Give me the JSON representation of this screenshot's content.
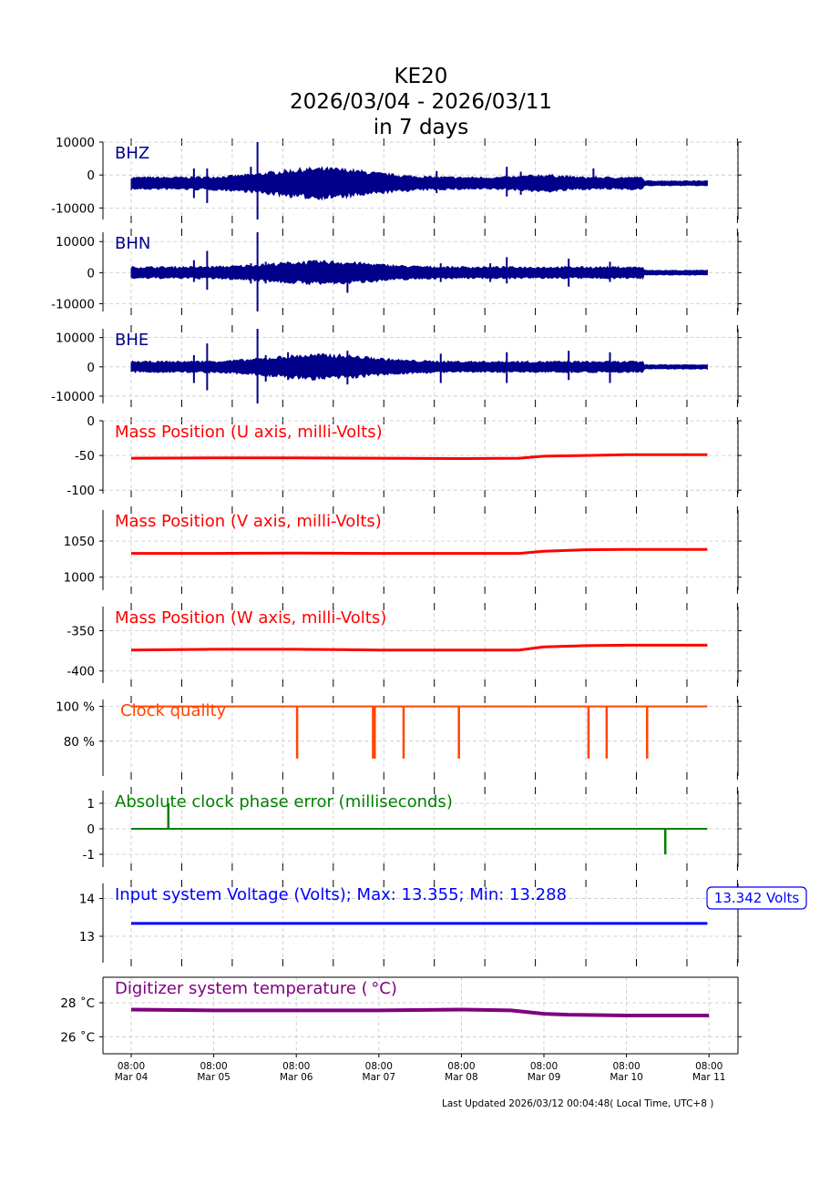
{
  "title": {
    "station": "KE20",
    "range": "2026/03/04 - 2026/03/11",
    "span": "in 7 days"
  },
  "footer": "Last Updated 2026/03/12 00:04:48( Local Time, UTC+8 )",
  "chart_data": [
    {
      "type": "line",
      "name": "BHZ",
      "label": "BHZ",
      "color": "#00008b",
      "kind": "seismic",
      "ylim": [
        -13500,
        10000
      ],
      "yticks": [
        {
          "v": 10000,
          "t": "10000"
        },
        {
          "v": 0,
          "t": "0"
        },
        {
          "v": -10000,
          "t": "-10000"
        }
      ],
      "baseline": -2500,
      "amplitude": 1800,
      "bulges": [
        {
          "day": 2.3,
          "width": 0.8,
          "gain": 1.5
        },
        {
          "day": 5.0,
          "width": 0.3,
          "gain": 0.4
        }
      ],
      "spikes": [
        [
          0.76,
          2000,
          -7000
        ],
        [
          0.92,
          2000,
          -8500
        ],
        [
          1.45,
          2500,
          -5000
        ],
        [
          1.53,
          10000,
          -13500
        ],
        [
          2.62,
          1000,
          -6500
        ],
        [
          3.7,
          1200,
          -5500
        ],
        [
          4.55,
          2500,
          -6500
        ],
        [
          4.72,
          1000,
          -6000
        ],
        [
          5.6,
          2000,
          -4000
        ]
      ]
    },
    {
      "type": "line",
      "name": "BHN",
      "label": "BHN",
      "color": "#00008b",
      "kind": "seismic",
      "ylim": [
        -12500,
        13000
      ],
      "yticks": [
        {
          "v": 10000,
          "t": "10000"
        },
        {
          "v": 0,
          "t": "0"
        },
        {
          "v": -10000,
          "t": "-10000"
        }
      ],
      "baseline": 0,
      "amplitude": 1800,
      "bulges": [
        {
          "day": 2.3,
          "width": 0.8,
          "gain": 1.0
        }
      ],
      "spikes": [
        [
          0.76,
          4000,
          -3000
        ],
        [
          0.92,
          7000,
          -5500
        ],
        [
          1.45,
          3000,
          -3500
        ],
        [
          1.53,
          13000,
          -12500
        ],
        [
          1.63,
          3500,
          -3500
        ],
        [
          2.62,
          3000,
          -6500
        ],
        [
          3.75,
          3000,
          -3000
        ],
        [
          4.35,
          3000,
          -3000
        ],
        [
          4.55,
          5000,
          -3500
        ],
        [
          5.3,
          4500,
          -4500
        ],
        [
          5.8,
          3500,
          -3000
        ]
      ]
    },
    {
      "type": "line",
      "name": "BHE",
      "label": "BHE",
      "color": "#00008b",
      "kind": "seismic",
      "ylim": [
        -12500,
        13000
      ],
      "yticks": [
        {
          "v": 10000,
          "t": "10000"
        },
        {
          "v": 0,
          "t": "0"
        },
        {
          "v": -10000,
          "t": "-10000"
        }
      ],
      "baseline": 0,
      "amplitude": 1800,
      "bulges": [
        {
          "day": 2.3,
          "width": 0.8,
          "gain": 1.3
        }
      ],
      "spikes": [
        [
          0.76,
          4000,
          -5500
        ],
        [
          0.92,
          8000,
          -8000
        ],
        [
          1.53,
          13000,
          -12500
        ],
        [
          1.63,
          4000,
          -5000
        ],
        [
          1.9,
          5000,
          -4500
        ],
        [
          2.62,
          5500,
          -6000
        ],
        [
          3.75,
          4500,
          -5500
        ],
        [
          4.55,
          5000,
          -5500
        ],
        [
          5.3,
          5500,
          -4500
        ],
        [
          5.8,
          5000,
          -5500
        ]
      ]
    },
    {
      "type": "line",
      "name": "mass-u",
      "label": "Mass Position (U axis, milli-Volts)",
      "color": "#ff0000",
      "ylim": [
        -105,
        0
      ],
      "yticks": [
        {
          "v": 0,
          "t": "0"
        },
        {
          "v": -50,
          "t": "-50"
        },
        {
          "v": -100,
          "t": "-100"
        }
      ],
      "x": [
        0,
        1,
        2,
        3,
        4,
        4.7,
        5.0,
        5.5,
        6,
        6.98
      ],
      "y": [
        -54,
        -53.5,
        -53.5,
        -54,
        -54.5,
        -54,
        -51,
        -50,
        -49,
        -49
      ]
    },
    {
      "type": "line",
      "name": "mass-v",
      "label": "Mass Position (V axis, milli-Volts)",
      "color": "#ff0000",
      "ylim": [
        982,
        1093
      ],
      "yticks": [
        {
          "v": 1050,
          "t": "1050"
        },
        {
          "v": 1000,
          "t": "1000"
        }
      ],
      "x": [
        0,
        1,
        2,
        3,
        4,
        4.7,
        5.0,
        5.5,
        6,
        6.98
      ],
      "y": [
        1033,
        1033,
        1033.5,
        1033,
        1033,
        1033,
        1036,
        1038,
        1038.5,
        1038.5
      ]
    },
    {
      "type": "line",
      "name": "mass-w",
      "label": "Mass Position (W axis, milli-Volts)",
      "color": "#ff0000",
      "ylim": [
        -415,
        -320
      ],
      "yticks": [
        {
          "v": -350,
          "t": "-350"
        },
        {
          "v": -400,
          "t": "-400"
        }
      ],
      "x": [
        0,
        1,
        2,
        3,
        4,
        4.7,
        5.0,
        5.5,
        6,
        6.98
      ],
      "y": [
        -374,
        -373,
        -373,
        -374,
        -374,
        -374,
        -370,
        -368.5,
        -368,
        -368
      ]
    },
    {
      "type": "line",
      "name": "clock-quality",
      "label": "Clock quality",
      "color": "#ff4500",
      "ylim": [
        60,
        104
      ],
      "yticks": [
        {
          "v": 100,
          "t": "100 %"
        },
        {
          "v": 80,
          "t": "80 %"
        }
      ],
      "base": 100,
      "drops": [
        [
          2.01,
          70
        ],
        [
          2.93,
          70
        ],
        [
          2.95,
          70
        ],
        [
          3.3,
          70
        ],
        [
          3.97,
          70
        ],
        [
          5.54,
          70
        ],
        [
          5.76,
          70
        ],
        [
          6.25,
          70
        ]
      ],
      "end": 6.98
    },
    {
      "type": "line",
      "name": "clock-phase",
      "label": "Absolute clock phase error (milliseconds)",
      "color": "#008000",
      "ylim": [
        -1.5,
        1.5
      ],
      "yticks": [
        {
          "v": 1,
          "t": "1"
        },
        {
          "v": 0,
          "t": "0"
        },
        {
          "v": -1,
          "t": "-1"
        }
      ],
      "base": 0,
      "drops": [
        [
          0.45,
          1
        ],
        [
          6.47,
          -1
        ]
      ],
      "end": 6.98
    },
    {
      "type": "line",
      "name": "voltage",
      "label": "Input system Voltage (Volts);    Max: 13.355; Min: 13.288",
      "color": "#0000ff",
      "ylim": [
        12.3,
        14.4
      ],
      "yticks": [
        {
          "v": 14,
          "t": "14"
        },
        {
          "v": 13,
          "t": "13"
        }
      ],
      "x": [
        0,
        6.98
      ],
      "y": [
        13.34,
        13.34
      ],
      "current": "13.342 Volts",
      "max": 13.355,
      "min": 13.288
    },
    {
      "type": "line",
      "name": "temperature",
      "label": "Digitizer system temperature ( $^\\circ$C)",
      "display_label": "Digitizer system temperature ( °C)",
      "color": "#800080",
      "ylim": [
        25,
        29.5
      ],
      "yticks": [
        {
          "v": 28,
          "t": "28 ˚C"
        },
        {
          "v": 26,
          "t": "26 ˚C"
        }
      ],
      "x": [
        0,
        1,
        2,
        3,
        4,
        4.6,
        5.0,
        5.3,
        6,
        7
      ],
      "y": [
        27.6,
        27.55,
        27.55,
        27.55,
        27.6,
        27.55,
        27.35,
        27.3,
        27.25,
        27.25
      ],
      "xticks": [
        {
          "d": 0,
          "t1": "08:00",
          "t2": "Mar 04"
        },
        {
          "d": 1,
          "t1": "08:00",
          "t2": "Mar 05"
        },
        {
          "d": 2,
          "t1": "08:00",
          "t2": "Mar 06"
        },
        {
          "d": 3,
          "t1": "08:00",
          "t2": "Mar 07"
        },
        {
          "d": 4,
          "t1": "08:00",
          "t2": "Mar 08"
        },
        {
          "d": 5,
          "t1": "08:00",
          "t2": "Mar 09"
        },
        {
          "d": 6,
          "t1": "08:00",
          "t2": "Mar 10"
        },
        {
          "d": 7,
          "t1": "08:00",
          "t2": "Mar 11"
        }
      ]
    }
  ]
}
